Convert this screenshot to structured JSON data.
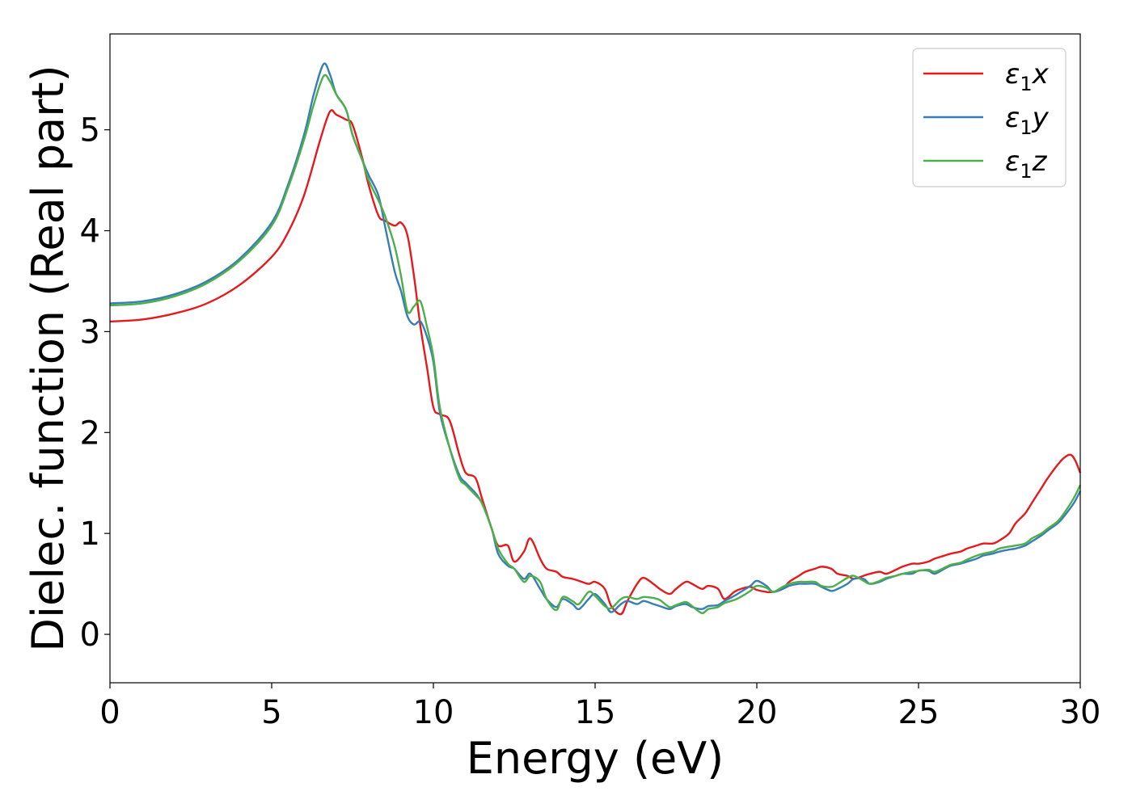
{
  "chart_data": {
    "type": "line",
    "title": "",
    "xlabel": "Energy (eV)",
    "ylabel": "Dielec. function (Real part)",
    "xlim": [
      0,
      30
    ],
    "ylim": [
      -0.48,
      5.95
    ],
    "xticks": [
      0,
      5,
      10,
      15,
      20,
      25,
      30
    ],
    "yticks": [
      0,
      1,
      2,
      3,
      4,
      5
    ],
    "grid": false,
    "legend_position": "top-right",
    "series": [
      {
        "name": "ε1x",
        "legend_base": "ε",
        "legend_sub": "1",
        "legend_var": "x",
        "color": "#e41a1c",
        "x": [
          0,
          1,
          2,
          3,
          4,
          5,
          5.5,
          6,
          6.5,
          6.8,
          7.0,
          7.3,
          7.5,
          7.8,
          8.0,
          8.3,
          8.5,
          8.8,
          9.0,
          9.2,
          9.4,
          9.6,
          9.8,
          10.0,
          10.2,
          10.5,
          10.8,
          11.0,
          11.3,
          11.5,
          11.8,
          12.0,
          12.3,
          12.5,
          12.8,
          13.0,
          13.3,
          13.5,
          13.8,
          14.0,
          14.3,
          14.5,
          14.8,
          15.0,
          15.3,
          15.5,
          15.8,
          16.0,
          16.3,
          16.5,
          16.8,
          17.0,
          17.3,
          17.5,
          17.8,
          18.0,
          18.3,
          18.5,
          18.8,
          19.0,
          19.3,
          19.5,
          19.8,
          20.0,
          20.3,
          20.5,
          20.8,
          21.0,
          21.3,
          21.5,
          21.8,
          22.0,
          22.3,
          22.5,
          22.8,
          23.0,
          23.3,
          23.5,
          23.8,
          24.0,
          24.3,
          24.5,
          24.8,
          25.0,
          25.3,
          25.5,
          25.8,
          26.0,
          26.3,
          26.5,
          26.8,
          27.0,
          27.3,
          27.5,
          27.8,
          28.0,
          28.3,
          28.5,
          28.8,
          29.0,
          29.3,
          29.5,
          29.7,
          29.85,
          30.0
        ],
        "values": [
          3.1,
          3.12,
          3.18,
          3.28,
          3.46,
          3.74,
          3.98,
          4.35,
          4.9,
          5.18,
          5.15,
          5.1,
          5.05,
          4.72,
          4.45,
          4.15,
          4.1,
          4.05,
          4.08,
          3.95,
          3.55,
          3.05,
          2.65,
          2.25,
          2.18,
          2.12,
          1.78,
          1.6,
          1.55,
          1.35,
          1.05,
          0.88,
          0.88,
          0.72,
          0.82,
          0.95,
          0.75,
          0.65,
          0.62,
          0.57,
          0.55,
          0.53,
          0.5,
          0.52,
          0.45,
          0.28,
          0.2,
          0.33,
          0.5,
          0.56,
          0.5,
          0.45,
          0.4,
          0.45,
          0.52,
          0.5,
          0.45,
          0.48,
          0.45,
          0.35,
          0.42,
          0.45,
          0.47,
          0.44,
          0.42,
          0.42,
          0.45,
          0.52,
          0.58,
          0.62,
          0.65,
          0.67,
          0.65,
          0.6,
          0.58,
          0.55,
          0.58,
          0.6,
          0.62,
          0.6,
          0.64,
          0.67,
          0.7,
          0.7,
          0.72,
          0.75,
          0.78,
          0.8,
          0.82,
          0.85,
          0.88,
          0.9,
          0.9,
          0.93,
          1.0,
          1.1,
          1.2,
          1.3,
          1.45,
          1.55,
          1.68,
          1.75,
          1.78,
          1.72,
          1.6
        ]
      },
      {
        "name": "ε1y",
        "legend_base": "ε",
        "legend_sub": "1",
        "legend_var": "y",
        "color": "#377eb8",
        "x": [
          0,
          1,
          2,
          3,
          4,
          5,
          5.5,
          6,
          6.3,
          6.6,
          6.8,
          7.0,
          7.3,
          7.5,
          7.8,
          8.0,
          8.3,
          8.5,
          8.8,
          9.0,
          9.2,
          9.4,
          9.6,
          9.8,
          10.0,
          10.2,
          10.5,
          10.8,
          11.0,
          11.3,
          11.5,
          11.8,
          12.0,
          12.3,
          12.5,
          12.8,
          13.0,
          13.3,
          13.5,
          13.8,
          14.0,
          14.3,
          14.5,
          14.8,
          15.0,
          15.3,
          15.5,
          15.8,
          16.0,
          16.3,
          16.5,
          16.8,
          17.0,
          17.3,
          17.5,
          17.8,
          18.0,
          18.3,
          18.5,
          18.8,
          19.0,
          19.3,
          19.5,
          19.8,
          20.0,
          20.3,
          20.5,
          20.8,
          21.0,
          21.3,
          21.5,
          21.8,
          22.0,
          22.3,
          22.5,
          22.8,
          23.0,
          23.3,
          23.5,
          23.8,
          24.0,
          24.3,
          24.5,
          24.8,
          25.0,
          25.3,
          25.5,
          25.8,
          26.0,
          26.3,
          26.5,
          26.8,
          27.0,
          27.3,
          27.5,
          27.8,
          28.0,
          28.3,
          28.5,
          28.8,
          29.0,
          29.3,
          29.5,
          29.8,
          30.0
        ],
        "values": [
          3.28,
          3.3,
          3.37,
          3.5,
          3.72,
          4.08,
          4.45,
          4.95,
          5.35,
          5.65,
          5.55,
          5.35,
          5.2,
          4.95,
          4.7,
          4.55,
          4.35,
          4.05,
          3.6,
          3.4,
          3.15,
          3.07,
          3.1,
          2.95,
          2.7,
          2.2,
          1.85,
          1.58,
          1.5,
          1.4,
          1.3,
          1.05,
          0.8,
          0.68,
          0.65,
          0.55,
          0.6,
          0.45,
          0.35,
          0.27,
          0.35,
          0.3,
          0.25,
          0.35,
          0.4,
          0.3,
          0.22,
          0.3,
          0.33,
          0.3,
          0.33,
          0.3,
          0.28,
          0.25,
          0.28,
          0.3,
          0.27,
          0.25,
          0.28,
          0.29,
          0.33,
          0.38,
          0.42,
          0.48,
          0.53,
          0.48,
          0.42,
          0.45,
          0.48,
          0.5,
          0.5,
          0.5,
          0.47,
          0.43,
          0.45,
          0.5,
          0.55,
          0.55,
          0.5,
          0.52,
          0.55,
          0.58,
          0.6,
          0.6,
          0.63,
          0.63,
          0.6,
          0.65,
          0.68,
          0.7,
          0.72,
          0.75,
          0.78,
          0.8,
          0.82,
          0.84,
          0.85,
          0.88,
          0.92,
          0.98,
          1.03,
          1.1,
          1.17,
          1.3,
          1.42
        ]
      },
      {
        "name": "ε1z",
        "legend_base": "ε",
        "legend_sub": "1",
        "legend_var": "z",
        "color": "#4daf4a",
        "x": [
          0,
          1,
          2,
          3,
          4,
          5,
          5.5,
          6,
          6.3,
          6.6,
          6.8,
          7.0,
          7.3,
          7.5,
          7.8,
          8.0,
          8.3,
          8.5,
          8.8,
          9.0,
          9.2,
          9.4,
          9.6,
          9.8,
          10.0,
          10.2,
          10.5,
          10.8,
          11.0,
          11.3,
          11.5,
          11.8,
          12.0,
          12.3,
          12.5,
          12.8,
          13.0,
          13.3,
          13.5,
          13.8,
          14.0,
          14.3,
          14.5,
          14.8,
          15.0,
          15.3,
          15.5,
          15.8,
          16.0,
          16.3,
          16.5,
          16.8,
          17.0,
          17.3,
          17.5,
          17.8,
          18.0,
          18.3,
          18.5,
          18.8,
          19.0,
          19.3,
          19.5,
          19.8,
          20.0,
          20.3,
          20.5,
          20.8,
          21.0,
          21.3,
          21.5,
          21.8,
          22.0,
          22.3,
          22.5,
          22.8,
          23.0,
          23.3,
          23.5,
          23.8,
          24.0,
          24.3,
          24.5,
          24.8,
          25.0,
          25.3,
          25.5,
          25.8,
          26.0,
          26.3,
          26.5,
          26.8,
          27.0,
          27.3,
          27.5,
          27.8,
          28.0,
          28.3,
          28.5,
          28.8,
          29.0,
          29.3,
          29.5,
          29.8,
          30.0
        ],
        "values": [
          3.26,
          3.28,
          3.35,
          3.48,
          3.7,
          4.05,
          4.42,
          4.9,
          5.25,
          5.53,
          5.48,
          5.35,
          5.2,
          4.95,
          4.7,
          4.5,
          4.3,
          4.15,
          3.85,
          3.55,
          3.2,
          3.25,
          3.3,
          3.05,
          2.75,
          2.25,
          1.85,
          1.55,
          1.48,
          1.38,
          1.3,
          1.05,
          0.85,
          0.7,
          0.65,
          0.52,
          0.58,
          0.52,
          0.35,
          0.24,
          0.37,
          0.33,
          0.3,
          0.42,
          0.38,
          0.28,
          0.26,
          0.35,
          0.37,
          0.35,
          0.37,
          0.36,
          0.34,
          0.27,
          0.29,
          0.32,
          0.28,
          0.21,
          0.25,
          0.27,
          0.31,
          0.34,
          0.37,
          0.43,
          0.48,
          0.46,
          0.42,
          0.47,
          0.5,
          0.52,
          0.52,
          0.52,
          0.48,
          0.47,
          0.5,
          0.56,
          0.58,
          0.53,
          0.5,
          0.53,
          0.56,
          0.58,
          0.6,
          0.62,
          0.63,
          0.64,
          0.62,
          0.66,
          0.69,
          0.71,
          0.74,
          0.78,
          0.8,
          0.82,
          0.85,
          0.87,
          0.88,
          0.9,
          0.95,
          1.0,
          1.05,
          1.12,
          1.2,
          1.35,
          1.48
        ]
      }
    ]
  }
}
